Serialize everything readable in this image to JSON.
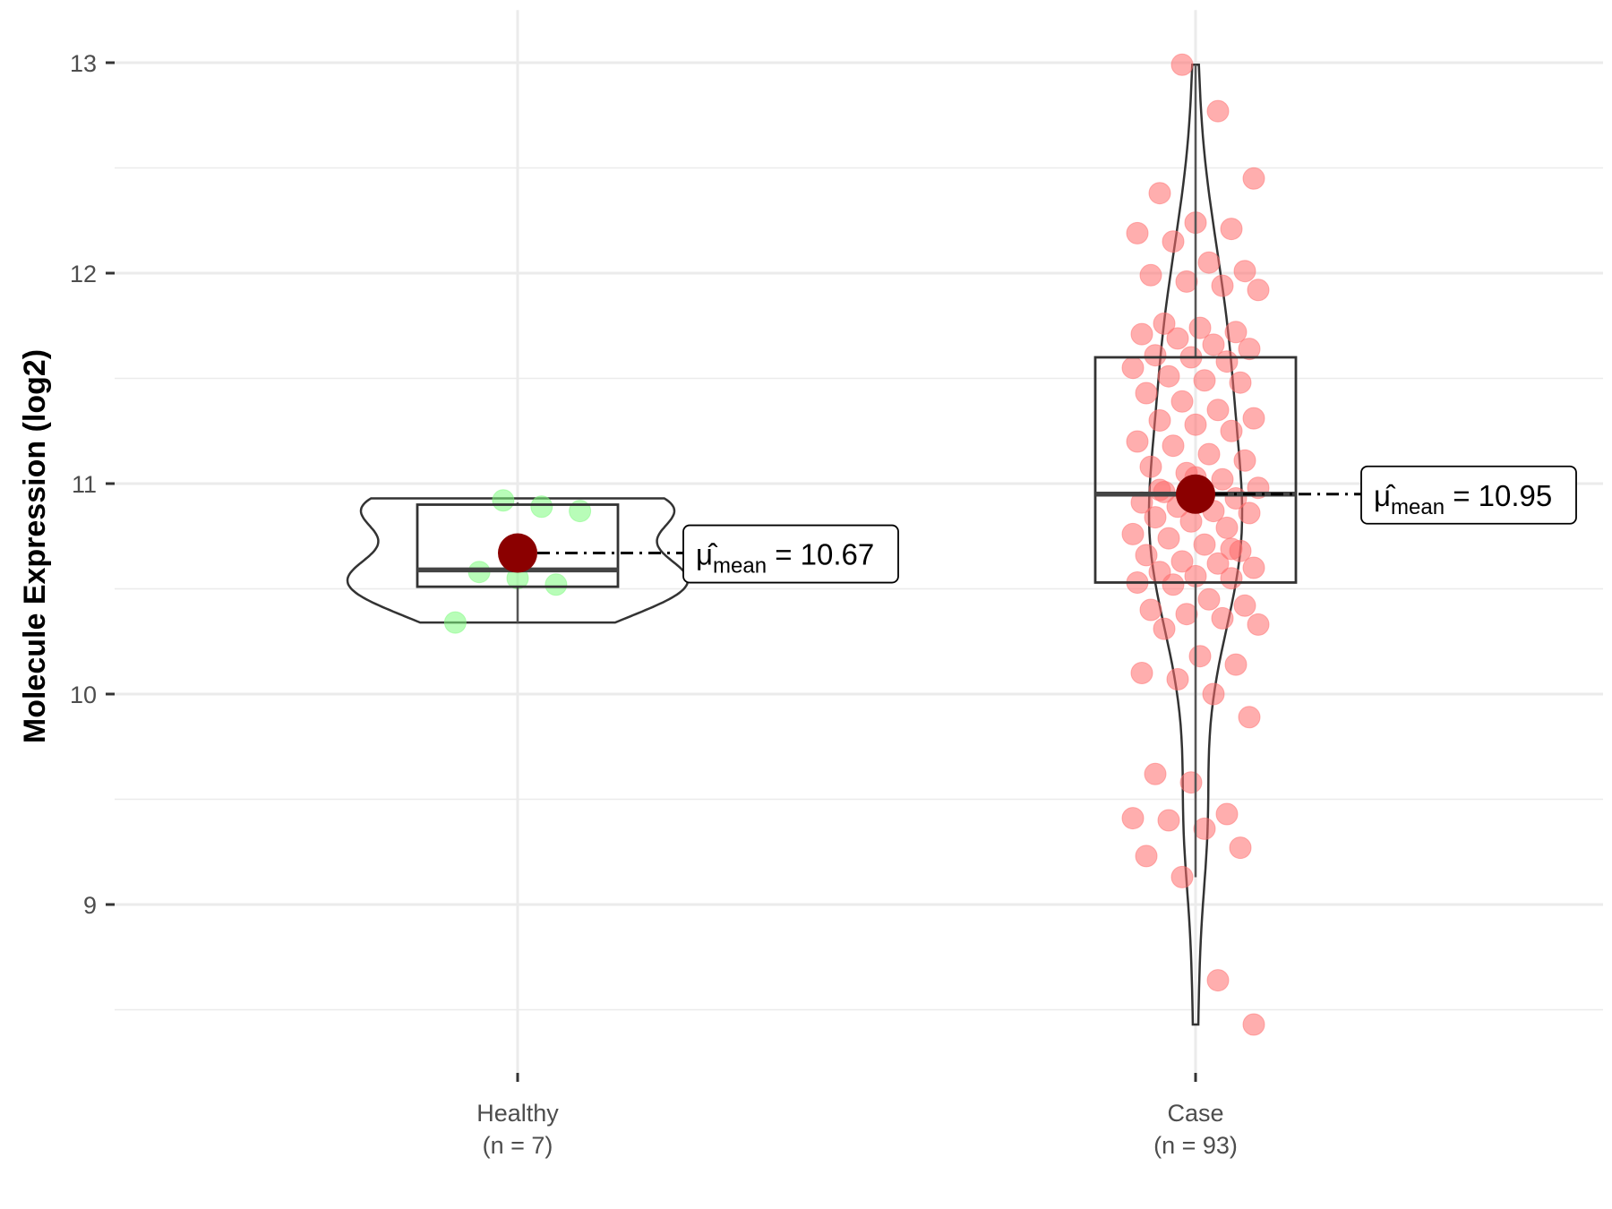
{
  "chart_data": {
    "type": "violin",
    "xlabel": "",
    "ylabel": "Molecule Expression (log2)",
    "ylim": [
      8.2,
      13.25
    ],
    "yticks": [
      9,
      10,
      11,
      12,
      13
    ],
    "grid": true,
    "categories": [
      {
        "name": "Healthy",
        "n_label": "(n = 7)"
      },
      {
        "name": "Case",
        "n_label": "(n = 93)"
      }
    ],
    "groups": [
      {
        "name": "Healthy",
        "color": "#7dfc7d",
        "box": {
          "q1": 10.51,
          "median": 10.59,
          "q3": 10.9
        },
        "whisker": [
          10.34,
          10.91
        ],
        "violin_range": [
          10.34,
          10.93
        ],
        "mean": 10.67,
        "mean_label": "10.67",
        "points": [
          10.92,
          10.89,
          10.87,
          10.58,
          10.55,
          10.52,
          10.34
        ]
      },
      {
        "name": "Case",
        "color": "#ff6b6b",
        "box": {
          "q1": 10.53,
          "median": 10.95,
          "q3": 11.6
        },
        "whisker": [
          9.13,
          12.99
        ],
        "violin_range": [
          8.43,
          12.99
        ],
        "mean": 10.95,
        "mean_label": "10.95",
        "points": [
          12.99,
          12.77,
          12.45,
          12.38,
          12.24,
          12.21,
          12.19,
          12.15,
          12.05,
          12.01,
          11.99,
          11.96,
          11.94,
          11.92,
          11.76,
          11.74,
          11.72,
          11.71,
          11.69,
          11.66,
          11.64,
          11.61,
          11.6,
          11.58,
          11.55,
          11.51,
          11.49,
          11.48,
          11.43,
          11.39,
          11.35,
          11.31,
          11.3,
          11.28,
          11.25,
          11.2,
          11.18,
          11.14,
          11.11,
          11.08,
          11.05,
          11.02,
          10.98,
          10.96,
          10.94,
          10.93,
          10.91,
          10.89,
          10.87,
          10.86,
          10.84,
          10.82,
          10.79,
          10.76,
          10.74,
          10.71,
          10.68,
          10.66,
          10.63,
          10.62,
          10.6,
          10.58,
          10.56,
          10.55,
          10.53,
          10.52,
          10.45,
          10.42,
          10.4,
          10.38,
          10.36,
          10.33,
          10.31,
          10.18,
          10.14,
          10.1,
          10.07,
          10.0,
          9.89,
          9.62,
          9.58,
          9.43,
          9.41,
          9.4,
          9.36,
          9.27,
          9.23,
          9.13,
          8.64,
          8.43,
          10.97,
          11.03,
          10.69
        ]
      }
    ],
    "mean_symbol": "μ̂",
    "mean_subscript": "mean"
  }
}
